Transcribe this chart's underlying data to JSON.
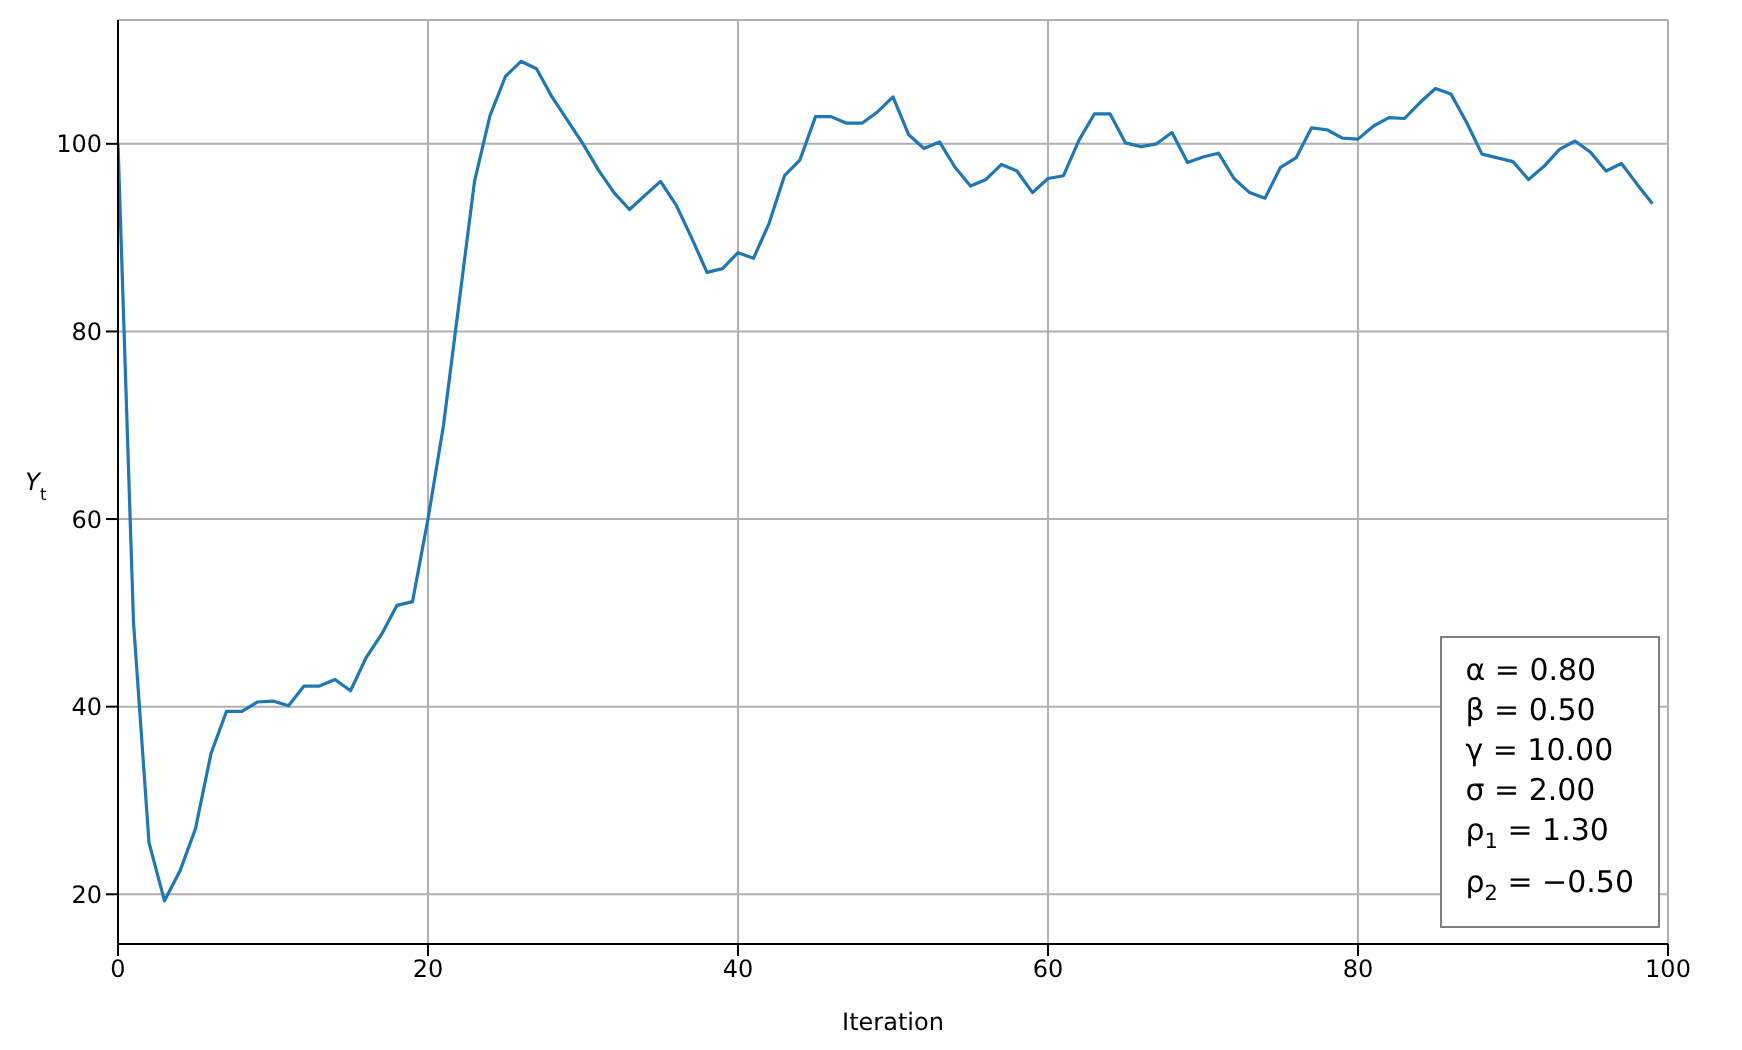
{
  "chart_data": {
    "type": "line",
    "xlabel": "Iteration",
    "ylabel": "Y$_{t}$",
    "x": [
      0,
      1,
      2,
      3,
      4,
      5,
      6,
      7,
      8,
      9,
      10,
      11,
      12,
      13,
      14,
      15,
      16,
      17,
      18,
      19,
      20,
      21,
      22,
      23,
      24,
      25,
      26,
      27,
      28,
      29,
      30,
      31,
      32,
      33,
      34,
      35,
      36,
      37,
      38,
      39,
      40,
      41,
      42,
      43,
      44,
      45,
      46,
      47,
      48,
      49,
      50,
      51,
      52,
      53,
      54,
      55,
      56,
      57,
      58,
      59,
      60,
      61,
      62,
      63,
      64,
      65,
      66,
      67,
      68,
      69,
      70,
      71,
      72,
      73,
      74,
      75,
      76,
      77,
      78,
      79,
      80,
      81,
      82,
      83,
      84,
      85,
      86,
      87,
      88,
      89,
      90,
      91,
      92,
      93,
      94,
      95,
      96,
      97,
      98,
      99
    ],
    "series": [
      {
        "color": "#1f77b4",
        "values": [
          100,
          49,
          25.5,
          19.3,
          22.5,
          27,
          35,
          39.5,
          39.5,
          40.5,
          40.6,
          40.1,
          42.2,
          42.2,
          42.9,
          41.7,
          45.2,
          47.7,
          50.8,
          51.2,
          60,
          70,
          83,
          96,
          103,
          107.2,
          108.8,
          108,
          105,
          102.5,
          100,
          97.2,
          94.8,
          93,
          94.5,
          96,
          93.5,
          90,
          86.3,
          86.7,
          88.4,
          87.8,
          91.5,
          96.6,
          98.3,
          102.9,
          102.9,
          102.2,
          102.2,
          103.4,
          105,
          101,
          99.5,
          100.2,
          97.5,
          95.5,
          96.2,
          97.8,
          97.1,
          94.8,
          96.3,
          96.6,
          100.4,
          103.2,
          103.2,
          100.1,
          99.7,
          100,
          101.2,
          98,
          98.6,
          99,
          96.3,
          94.8,
          94.2,
          97.5,
          98.5,
          101.7,
          101.5,
          100.6,
          100.5,
          101.9,
          102.8,
          102.7,
          104.4,
          105.9,
          105.3,
          102.3,
          98.9,
          98.5,
          98.1,
          96.2,
          97.6,
          99.4,
          100.3,
          99.1,
          97.1,
          97.9,
          95.7,
          93.6
        ]
      }
    ],
    "xlim": [
      0,
      100
    ],
    "xticks": [
      0,
      20,
      40,
      60,
      80,
      100
    ],
    "ylim": [
      14.7,
      113.2
    ],
    "yticks": [
      20,
      40,
      60,
      80,
      100
    ],
    "grid": true,
    "marker": "none",
    "line_style": "solid",
    "annotations": [
      "α = 0.80",
      "β = 0.50",
      "γ = 10.00",
      "σ = 2.00",
      "ρ$_{1}$ = 1.30",
      "ρ$_{2}$ = −0.50"
    ]
  }
}
